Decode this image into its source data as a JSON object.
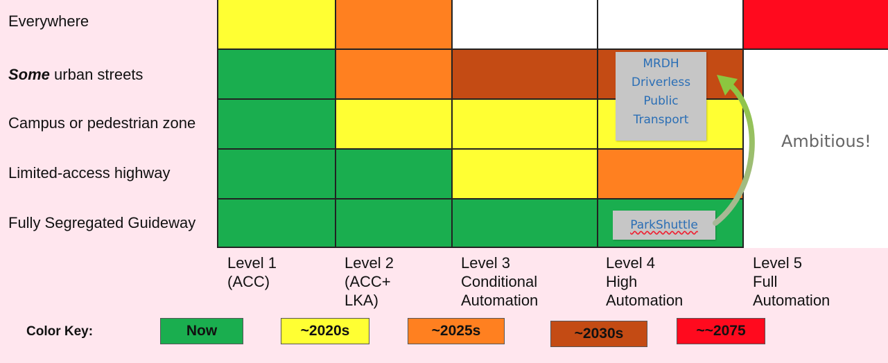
{
  "rows": [
    {
      "label_pre": "",
      "label_em": "",
      "label_text": "Everywhere",
      "statuses": [
        "2020s",
        "2025s",
        "none",
        "none",
        "2075"
      ]
    },
    {
      "label_pre": "",
      "label_em": "Some",
      "label_text": " urban streets",
      "statuses": [
        "now",
        "2025s",
        "2030s",
        "2030s",
        "none"
      ]
    },
    {
      "label_pre": "",
      "label_em": "",
      "label_text": "Campus or pedestrian zone",
      "statuses": [
        "now",
        "2020s",
        "2020s",
        "2020s",
        "none"
      ]
    },
    {
      "label_pre": "",
      "label_em": "",
      "label_text": "Limited-access highway",
      "statuses": [
        "now",
        "now",
        "2020s",
        "2025s",
        "none"
      ]
    },
    {
      "label_pre": "",
      "label_em": "",
      "label_text": "Fully Segregated Guideway",
      "statuses": [
        "now",
        "now",
        "now",
        "now",
        "none"
      ]
    }
  ],
  "columns": [
    {
      "line1": "Level 1",
      "line2": "(ACC)",
      "line3": ""
    },
    {
      "line1": "Level 2",
      "line2": "(ACC+",
      "line3": "LKA)"
    },
    {
      "line1": "Level 3",
      "line2": "Conditional",
      "line3": "Automation"
    },
    {
      "line1": "Level 4",
      "line2": "High",
      "line3": "Automation"
    },
    {
      "line1": "Level 5",
      "line2": "Full",
      "line3": "Automation"
    }
  ],
  "colors": {
    "now": "#1aae4f",
    "2020s": "#ffff33",
    "2025s": "#ff8020",
    "2030s": "#c44b14",
    "2075": "#ff0a1e",
    "none": "#ffffff"
  },
  "notes": {
    "mrdh": [
      "MRDH",
      "Driverless",
      "Public",
      "Transport"
    ],
    "parkshuttle": "ParkShuttle",
    "ambitious": "Ambitious!"
  },
  "color_key": {
    "title": "Color Key:",
    "items": [
      {
        "status": "now",
        "label": "Now"
      },
      {
        "status": "2020s",
        "label": "~2020s"
      },
      {
        "status": "2025s",
        "label": "~2025s"
      },
      {
        "status": "2030s",
        "label": "~2030s"
      },
      {
        "status": "2075",
        "label": "~~2075"
      }
    ]
  }
}
